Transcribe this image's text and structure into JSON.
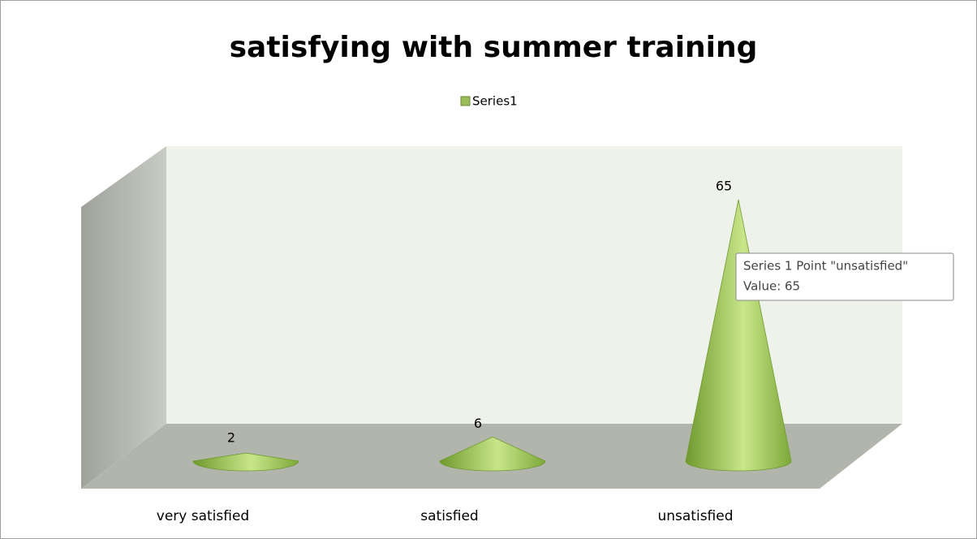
{
  "chart_data": {
    "type": "cone3d",
    "title": "satisfying with summer training",
    "categories": [
      "very satisfied",
      "satisfied",
      "unsatisfied"
    ],
    "series": [
      {
        "name": "Series1",
        "color": "#9bbb59",
        "values": [
          2,
          6,
          65
        ]
      }
    ],
    "legend": "top",
    "tooltip": {
      "title": "Series 1 Point \"unsatisfied\"",
      "text": "Value: 65"
    }
  }
}
